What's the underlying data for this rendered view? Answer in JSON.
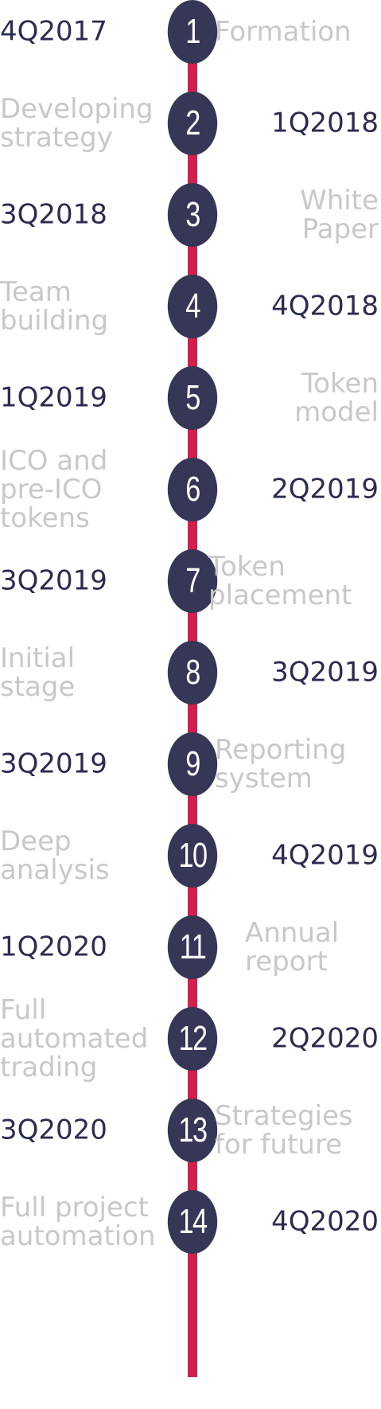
{
  "accent_line_color": "#d21f4e",
  "circle_color": "#363657",
  "date_color": "#2c2c50",
  "event_color": "#c8c8c8",
  "milestones": [
    {
      "number": "1",
      "date": "4Q2017",
      "event": [
        "Formation"
      ]
    },
    {
      "number": "2",
      "date": "1Q2018",
      "event": [
        "Developing",
        "strategy"
      ]
    },
    {
      "number": "3",
      "date": "3Q2018",
      "event": [
        "White",
        "Paper"
      ]
    },
    {
      "number": "4",
      "date": "4Q2018",
      "event": [
        "Team",
        "building"
      ]
    },
    {
      "number": "5",
      "date": "1Q2019",
      "event": [
        "Token",
        "model"
      ]
    },
    {
      "number": "6",
      "date": "2Q2019",
      "event": [
        "ICO and",
        "pre-ICO",
        "tokens"
      ]
    },
    {
      "number": "7",
      "date": "3Q2019",
      "event": [
        "Token",
        "placement"
      ]
    },
    {
      "number": "8",
      "date": "3Q2019",
      "event": [
        "Initial",
        "stage"
      ]
    },
    {
      "number": "9",
      "date": "3Q2019",
      "event": [
        "Reporting",
        "system"
      ]
    },
    {
      "number": "10",
      "date": "4Q2019",
      "event": [
        "Deep",
        "analysis"
      ]
    },
    {
      "number": "11",
      "date": "1Q2020",
      "event": [
        "Annual",
        "report"
      ]
    },
    {
      "number": "12",
      "date": "2Q2020",
      "event": [
        "Full",
        "automated",
        "trading"
      ]
    },
    {
      "number": "13",
      "date": "3Q2020",
      "event": [
        "Strategies",
        "for future"
      ]
    },
    {
      "number": "14",
      "date": "4Q2020",
      "event": [
        "Full project",
        "automation"
      ]
    }
  ]
}
